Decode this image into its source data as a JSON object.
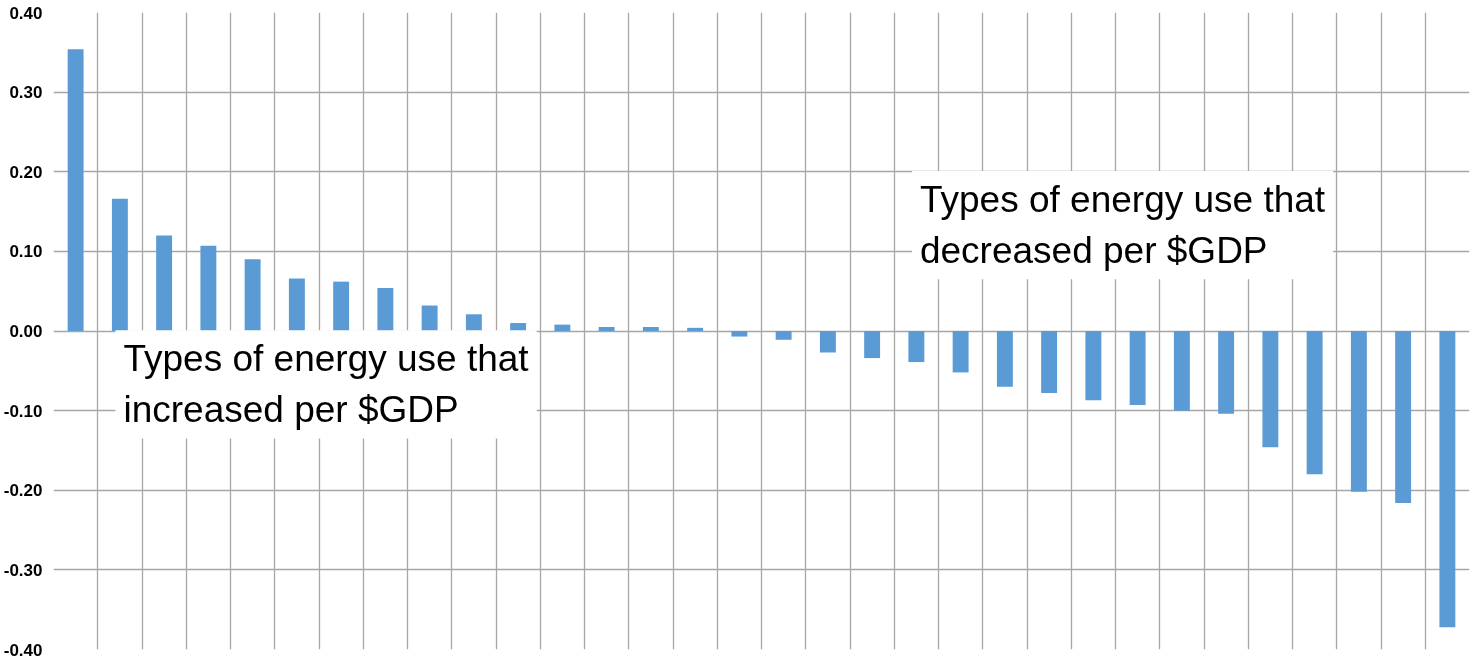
{
  "chart_data": {
    "type": "bar",
    "categories": [
      null,
      null,
      null,
      null,
      null,
      null,
      null,
      null,
      null,
      null,
      null,
      null,
      null,
      null,
      null,
      null,
      null,
      null,
      null,
      null,
      null,
      null,
      null,
      null,
      null,
      null,
      null,
      null,
      null,
      null,
      null,
      null
    ],
    "values": [
      0.354,
      0.166,
      0.12,
      0.107,
      0.09,
      0.066,
      0.062,
      0.054,
      0.032,
      0.021,
      0.01,
      0.008,
      0.005,
      0.005,
      0.004,
      -0.007,
      -0.011,
      -0.027,
      -0.034,
      -0.039,
      -0.052,
      -0.07,
      -0.078,
      -0.087,
      -0.093,
      -0.1,
      -0.104,
      -0.146,
      -0.18,
      -0.202,
      -0.216,
      -0.372
    ],
    "color": "#5b9bd5",
    "ylim": [
      -0.4,
      0.4
    ],
    "yticks": [
      {
        "value": -0.4,
        "label": "-0.40"
      },
      {
        "value": -0.3,
        "label": "-0.30"
      },
      {
        "value": -0.2,
        "label": "-0.20"
      },
      {
        "value": -0.1,
        "label": "-0.10"
      },
      {
        "value": 0,
        "label": "0.00"
      },
      {
        "value": 0.1,
        "label": "0.10"
      },
      {
        "value": 0.2,
        "label": "0.20"
      },
      {
        "value": 0.3,
        "label": "0.30"
      },
      {
        "value": 0.4,
        "label": "0.40"
      }
    ],
    "grid": true,
    "tick_labels": "y",
    "annotations": [
      "Types of energy use that increased per $GDP",
      "Types of energy use that decreased per $GDP"
    ]
  }
}
